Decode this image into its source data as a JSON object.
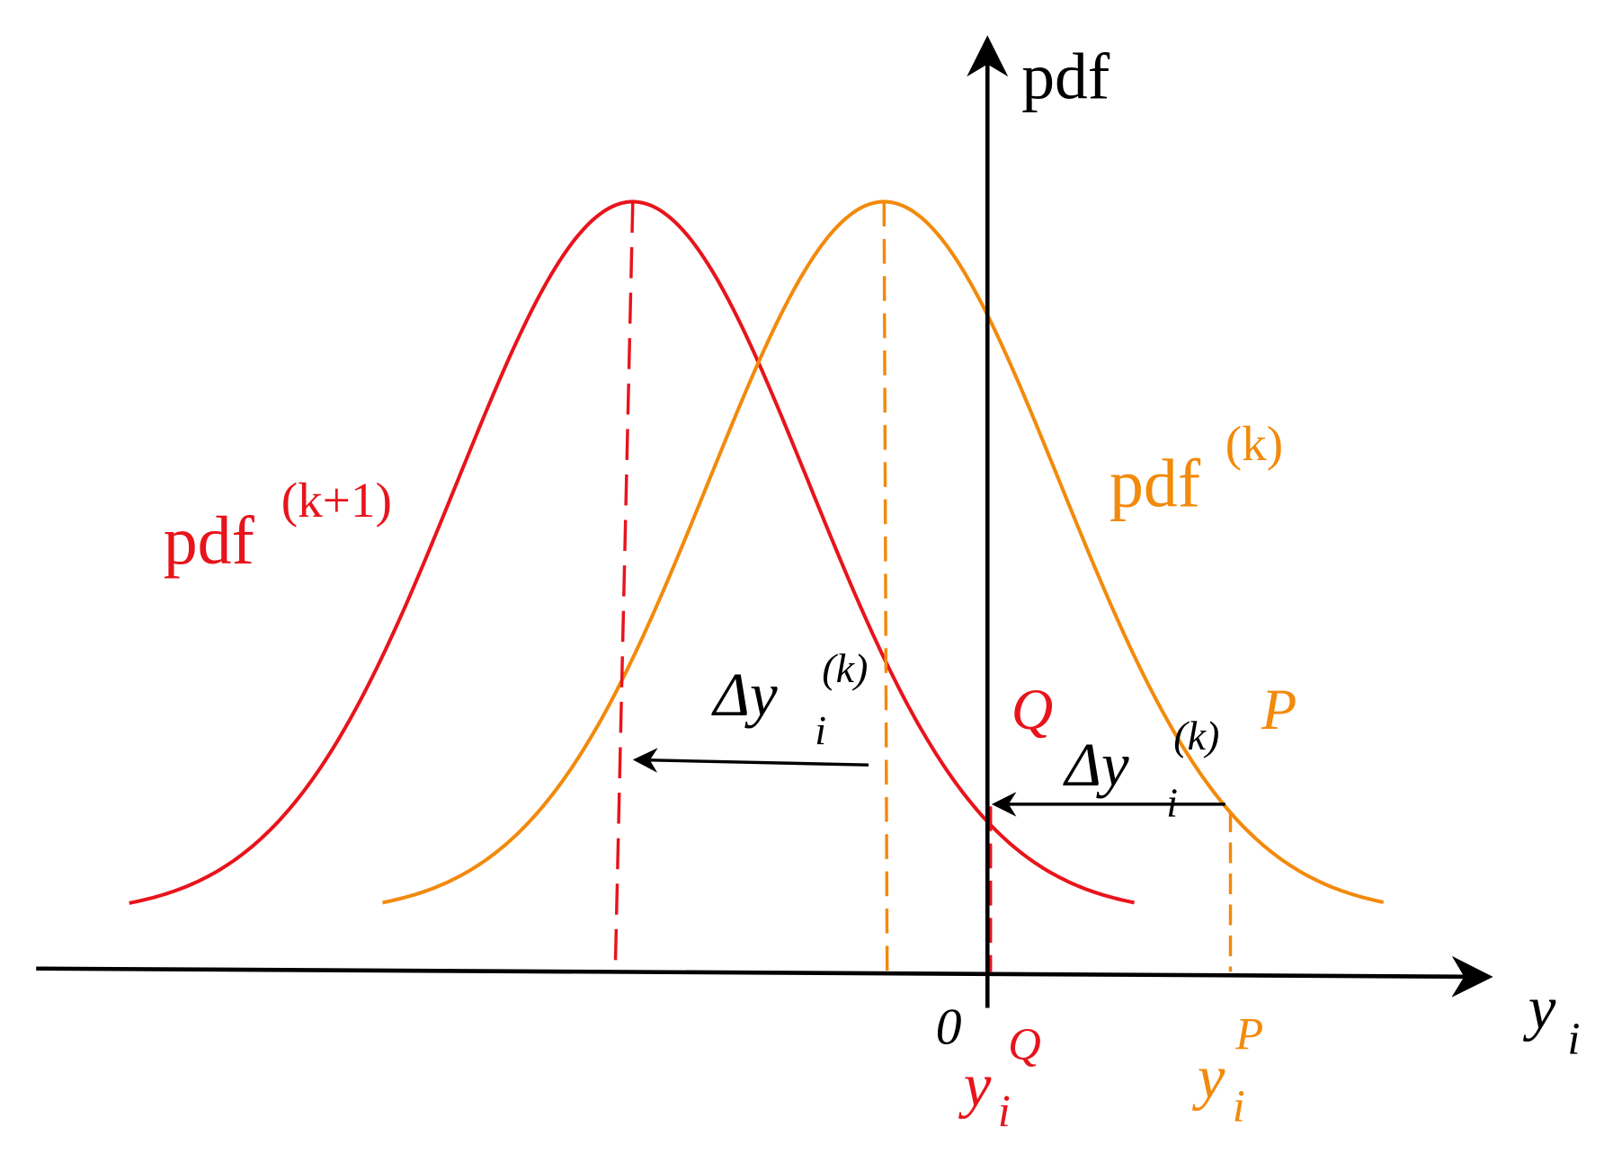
{
  "axes": {
    "y_label": "pdf",
    "x_label": {
      "main": "y",
      "sub": "i"
    },
    "origin": "0"
  },
  "curves": [
    {
      "label": "pdf",
      "sup": "(k+1)"
    },
    {
      "label": "pdf",
      "sup": "(k)"
    }
  ],
  "shifts": [
    {
      "main": "Δy",
      "sub": "i",
      "sup": "(k)"
    },
    {
      "main": "Δy",
      "sub": "i",
      "sup": "(k)"
    }
  ],
  "points": [
    {
      "name": "Q",
      "coord": {
        "main": "y",
        "sub": "i",
        "sup": "Q"
      }
    },
    {
      "name": "P",
      "coord": {
        "main": "y",
        "sub": "i",
        "sup": "P"
      }
    }
  ]
}
